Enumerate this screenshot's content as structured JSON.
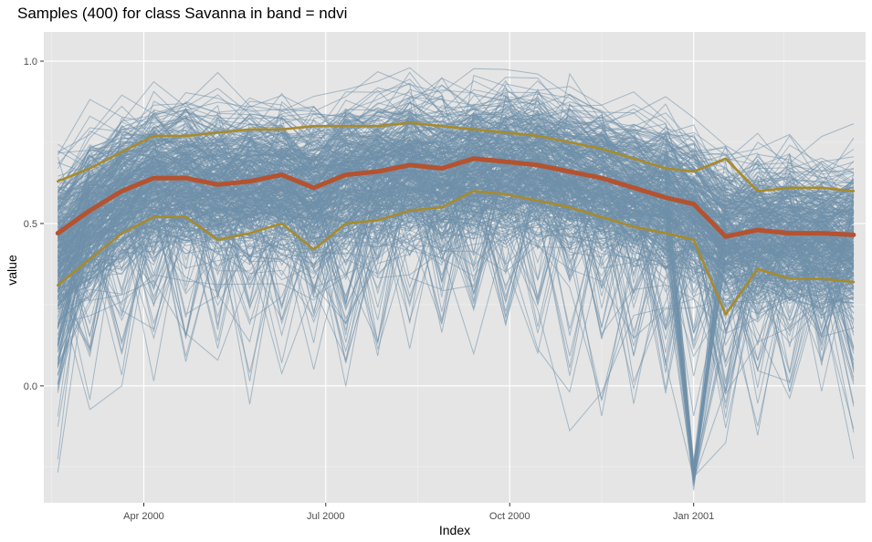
{
  "chart_data": {
    "type": "line",
    "title": "Samples (400) for class Savanna in band = ndvi",
    "xlabel": "Index",
    "ylabel": "value",
    "x_ticks": [
      "Apr 2000",
      "Jul 2000",
      "Oct 2000",
      "Jan 2001"
    ],
    "x_tick_dates": [
      "2000-04-01",
      "2000-07-01",
      "2000-10-01",
      "2001-01-01"
    ],
    "x_range": [
      "2000-02-11",
      "2001-03-28"
    ],
    "y_ticks": [
      "0.0",
      "0.5",
      "1.0"
    ],
    "y_tick_values": [
      0.0,
      0.5,
      1.0
    ],
    "ylim": [
      -0.36,
      1.09
    ],
    "grid": true,
    "background": "#e5e5e5",
    "sample_count": 400,
    "dates": [
      "2000-02-18",
      "2000-03-05",
      "2000-03-21",
      "2000-04-06",
      "2000-04-22",
      "2000-05-08",
      "2000-05-24",
      "2000-06-09",
      "2000-06-25",
      "2000-07-11",
      "2000-07-27",
      "2000-08-12",
      "2000-08-28",
      "2000-09-13",
      "2000-09-29",
      "2000-10-15",
      "2000-10-31",
      "2000-11-16",
      "2000-12-02",
      "2000-12-18",
      "2001-01-01",
      "2001-01-17",
      "2001-02-02",
      "2001-02-18",
      "2001-03-06",
      "2001-03-22"
    ],
    "series": [
      {
        "role": "samples",
        "color": "#6f8faa",
        "values": [
          0.44,
          0.53,
          0.6,
          0.64,
          0.64,
          0.62,
          0.63,
          0.63,
          0.61,
          0.65,
          0.66,
          0.68,
          0.67,
          0.69,
          0.69,
          0.68,
          0.66,
          0.64,
          0.61,
          0.58,
          0.55,
          0.47,
          0.48,
          0.47,
          0.47,
          0.46
        ]
      },
      {
        "role": "median",
        "color": "#b5522f",
        "values": [
          0.47,
          0.54,
          0.6,
          0.64,
          0.64,
          0.62,
          0.63,
          0.65,
          0.61,
          0.65,
          0.66,
          0.68,
          0.67,
          0.7,
          0.69,
          0.68,
          0.66,
          0.64,
          0.61,
          0.58,
          0.56,
          0.46,
          0.48,
          0.47,
          0.47,
          0.465
        ]
      },
      {
        "role": "upper quantile",
        "color": "#a88a2c",
        "values": [
          0.63,
          0.67,
          0.72,
          0.77,
          0.77,
          0.78,
          0.79,
          0.79,
          0.8,
          0.8,
          0.8,
          0.81,
          0.8,
          0.79,
          0.78,
          0.77,
          0.75,
          0.73,
          0.7,
          0.67,
          0.66,
          0.7,
          0.6,
          0.61,
          0.61,
          0.6
        ]
      },
      {
        "role": "lower quantile",
        "color": "#a88a2c",
        "values": [
          0.31,
          0.39,
          0.47,
          0.52,
          0.52,
          0.45,
          0.47,
          0.5,
          0.42,
          0.5,
          0.51,
          0.54,
          0.55,
          0.6,
          0.59,
          0.57,
          0.55,
          0.52,
          0.49,
          0.47,
          0.45,
          0.22,
          0.36,
          0.33,
          0.33,
          0.32
        ]
      }
    ]
  }
}
